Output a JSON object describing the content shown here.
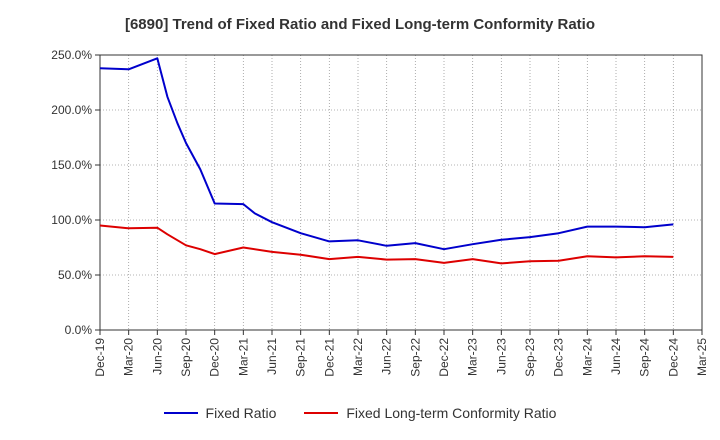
{
  "chart_data": {
    "type": "line",
    "title": "[6890]  Trend of Fixed Ratio and Fixed Long-term Conformity Ratio",
    "xlabel": "",
    "ylabel": "",
    "ylim": [
      0,
      250
    ],
    "y_ticks": [
      "0.0%",
      "50.0%",
      "100.0%",
      "150.0%",
      "200.0%",
      "250.0%"
    ],
    "x_ticks": [
      "Dec-19",
      "Mar-20",
      "Jun-20",
      "Sep-20",
      "Dec-20",
      "Mar-21",
      "Jun-21",
      "Sep-21",
      "Dec-21",
      "Mar-22",
      "Jun-22",
      "Sep-22",
      "Dec-22",
      "Mar-23",
      "Jun-23",
      "Sep-23",
      "Dec-23",
      "Mar-24",
      "Jun-24",
      "Sep-24",
      "Dec-24",
      "Mar-25"
    ],
    "grid": "vertical dotted and horizontal dotted",
    "legend_position": "bottom",
    "series": [
      {
        "name": "Fixed Ratio",
        "color": "#0000cc",
        "points": [
          [
            0,
            238
          ],
          [
            1,
            237
          ],
          [
            2,
            247
          ],
          [
            2.35,
            212
          ],
          [
            2.7,
            188
          ],
          [
            3,
            170
          ],
          [
            3.5,
            146
          ],
          [
            4,
            115
          ],
          [
            5,
            114.5
          ],
          [
            5.4,
            106
          ],
          [
            6,
            98
          ],
          [
            7,
            88
          ],
          [
            8,
            80.5
          ],
          [
            9,
            81.5
          ],
          [
            10,
            76.5
          ],
          [
            11,
            79
          ],
          [
            12,
            73.5
          ],
          [
            13,
            78
          ],
          [
            14,
            82
          ],
          [
            15,
            84.5
          ],
          [
            16,
            88
          ],
          [
            17,
            94
          ],
          [
            18,
            94
          ],
          [
            19,
            93.5
          ],
          [
            20,
            96
          ]
        ]
      },
      {
        "name": "Fixed Long-term Conformity Ratio",
        "color": "#dd0000",
        "points": [
          [
            0,
            95
          ],
          [
            1,
            92.5
          ],
          [
            2,
            93
          ],
          [
            2.35,
            87
          ],
          [
            3,
            77
          ],
          [
            3.5,
            73.5
          ],
          [
            4,
            69
          ],
          [
            5,
            75
          ],
          [
            6,
            71
          ],
          [
            7,
            68.5
          ],
          [
            8,
            64.5
          ],
          [
            9,
            66.5
          ],
          [
            10,
            64
          ],
          [
            11,
            64.5
          ],
          [
            12,
            61
          ],
          [
            13,
            64.5
          ],
          [
            14,
            60.5
          ],
          [
            15,
            62.5
          ],
          [
            16,
            63
          ],
          [
            17,
            67
          ],
          [
            18,
            66
          ],
          [
            19,
            67
          ],
          [
            20,
            66.5
          ]
        ]
      }
    ]
  }
}
